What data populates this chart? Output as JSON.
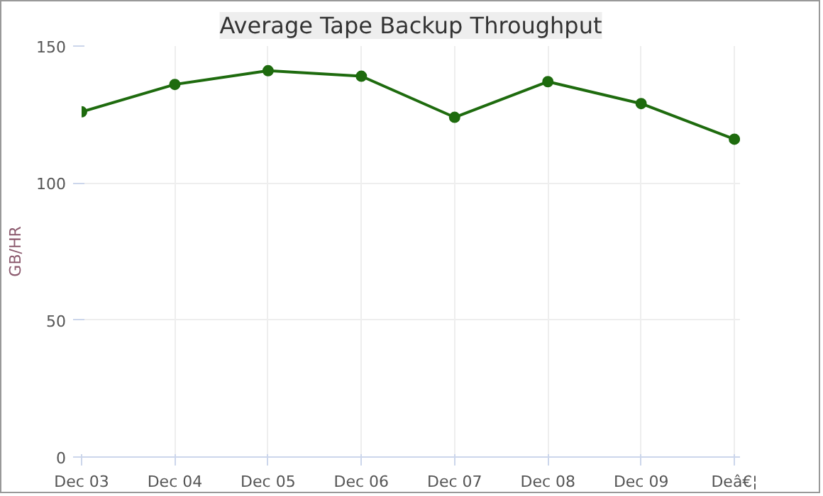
{
  "chart_data": {
    "type": "line",
    "title": "Average Tape Backup Throughput",
    "ylabel": "GB/HR",
    "categories": [
      "Dec 03",
      "Dec 04",
      "Dec 05",
      "Dec 06",
      "Dec 07",
      "Dec 08",
      "Dec 09",
      "Deâ€¦"
    ],
    "series": [
      {
        "color": "#1e6b0e",
        "values": [
          126,
          136,
          141,
          139,
          124,
          137,
          129,
          116
        ]
      }
    ],
    "ylim": [
      0,
      150
    ],
    "yticks": [
      0,
      50,
      100,
      150
    ],
    "grid": true,
    "marker": "circle",
    "line_style": "solid"
  }
}
